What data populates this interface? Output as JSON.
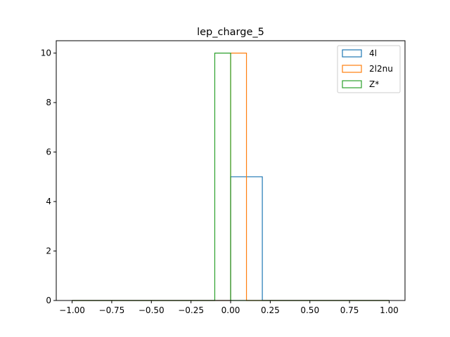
{
  "chart_data": {
    "type": "histogram",
    "title": "lep_charge_5",
    "xlabel": "",
    "ylabel": "",
    "xlim": [
      -1.1,
      1.1
    ],
    "ylim": [
      0,
      10.5
    ],
    "xticks": [
      -1.0,
      -0.75,
      -0.5,
      -0.25,
      0.0,
      0.25,
      0.5,
      0.75,
      1.0
    ],
    "xtick_labels": [
      "−1.00",
      "−0.75",
      "−0.50",
      "−0.25",
      "0.00",
      "0.25",
      "0.50",
      "0.75",
      "1.00"
    ],
    "yticks": [
      0,
      2,
      4,
      6,
      8,
      10
    ],
    "ytick_labels": [
      "0",
      "2",
      "4",
      "6",
      "8",
      "10"
    ],
    "bin_edges": [
      -1.0,
      -0.9,
      -0.8,
      -0.7,
      -0.6,
      -0.5,
      -0.4,
      -0.3,
      -0.2,
      -0.1,
      0.0,
      0.1,
      0.2,
      0.3,
      0.4,
      0.5,
      0.6,
      0.7,
      0.8,
      0.9,
      1.0
    ],
    "histtype": "step",
    "grid": false,
    "legend_position": "top-right",
    "series": [
      {
        "name": "4l",
        "color": "#1f77b4",
        "counts": [
          0,
          0,
          0,
          0,
          0,
          0,
          0,
          0,
          0,
          0,
          5,
          5,
          0,
          0,
          0,
          0,
          0,
          0,
          0,
          0
        ]
      },
      {
        "name": "2l2nu",
        "color": "#ff7f0e",
        "counts": [
          0,
          0,
          0,
          0,
          0,
          0,
          0,
          0,
          0,
          0,
          10,
          0,
          0,
          0,
          0,
          0,
          0,
          0,
          0,
          0
        ]
      },
      {
        "name": "Z*",
        "color": "#2ca02c",
        "counts": [
          0,
          0,
          0,
          0,
          0,
          0,
          0,
          0,
          0,
          10,
          0,
          0,
          0,
          0,
          0,
          0,
          0,
          0,
          0,
          0
        ]
      }
    ]
  }
}
